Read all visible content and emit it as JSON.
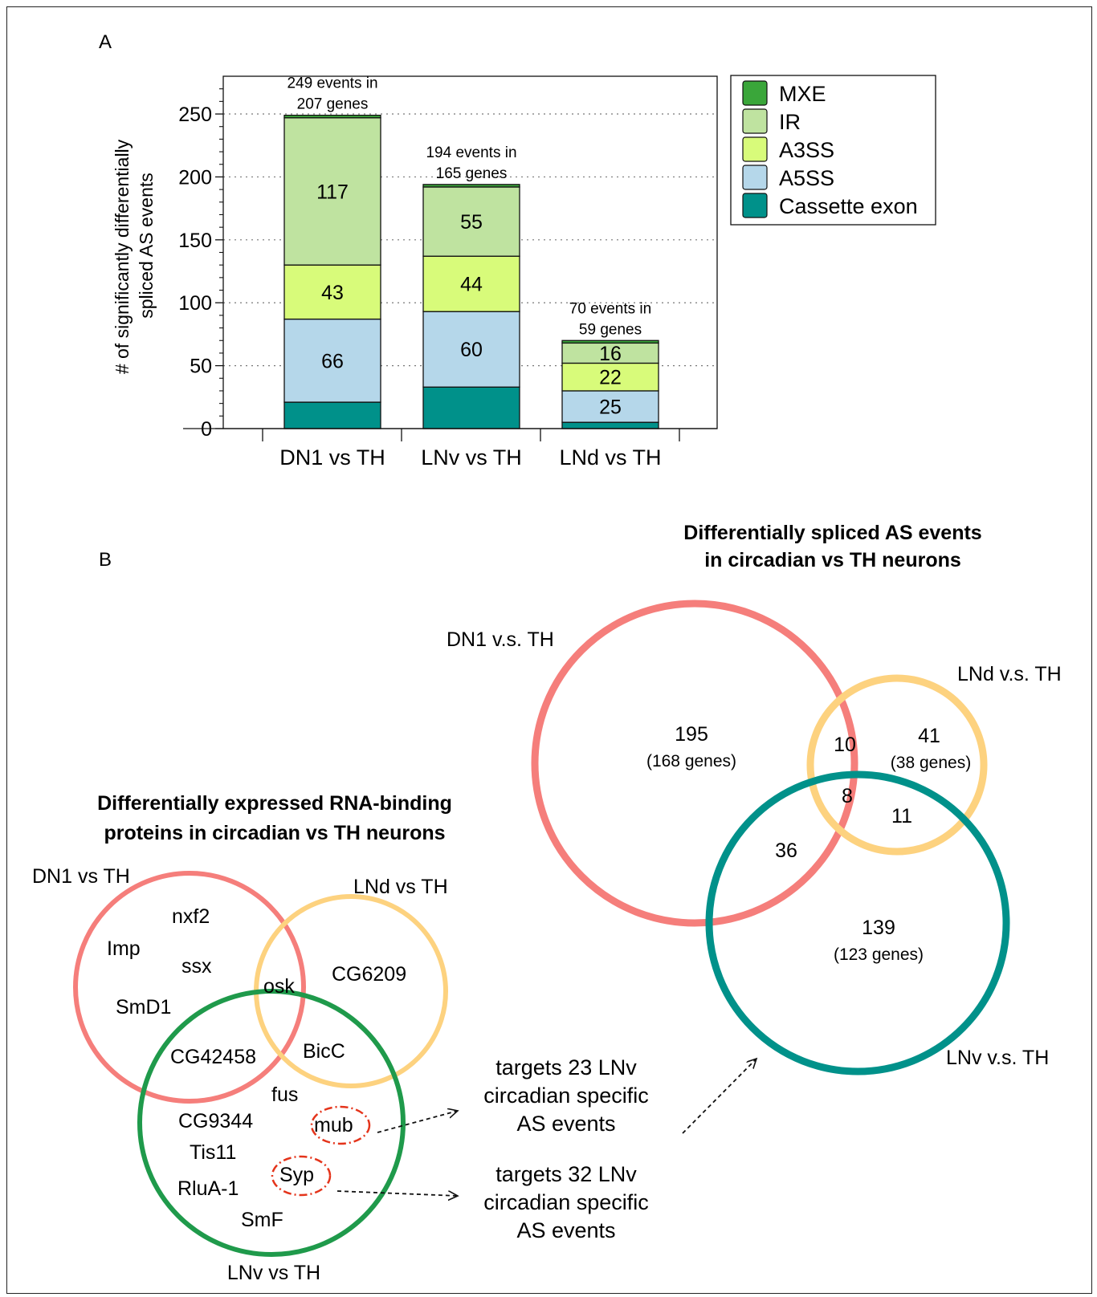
{
  "colors": {
    "MXE": "#3aa63a",
    "IR": "#bfe3a0",
    "A3SS": "#d8fb7a",
    "A5SS": "#b5d7ea",
    "Cassette exon": "#00918a",
    "dn1_circle": "#f57e7b",
    "lnd_circle": "#fdd27f",
    "lnv_as_circle": "#00918a",
    "lnv_rbp_circle": "#1f9a4b",
    "highlight": "#e4341b"
  },
  "panel_a": {
    "label": "A",
    "chart_data": {
      "type": "bar",
      "stacked": true,
      "ylabel_line1": "# of significantly differentially",
      "ylabel_line2": "spliced AS events",
      "ylim": [
        0,
        280
      ],
      "yticks": [
        0,
        50,
        100,
        150,
        200,
        250
      ],
      "grid": "horizontal dotted",
      "legend_position": "top-right",
      "categories": [
        "DN1 vs TH",
        "LNv vs TH",
        "LNd vs TH"
      ],
      "series": [
        {
          "name": "Cassette exon",
          "values": [
            21,
            33,
            5
          ],
          "labels": [
            "",
            "",
            ""
          ]
        },
        {
          "name": "A5SS",
          "values": [
            66,
            60,
            25
          ],
          "labels": [
            "66",
            "60",
            "25"
          ]
        },
        {
          "name": "A3SS",
          "values": [
            43,
            44,
            22
          ],
          "labels": [
            "43",
            "44",
            "22"
          ]
        },
        {
          "name": "IR",
          "values": [
            117,
            55,
            16
          ],
          "labels": [
            "117",
            "55",
            "16"
          ]
        },
        {
          "name": "MXE",
          "values": [
            2,
            2,
            2
          ],
          "labels": [
            "",
            "",
            ""
          ]
        }
      ],
      "legend": [
        "MXE",
        "IR",
        "A3SS",
        "A5SS",
        "Cassette exon"
      ],
      "annotations": [
        {
          "line1": "249 events in",
          "line2": "207 genes"
        },
        {
          "line1": "194 events in",
          "line2": "165 genes"
        },
        {
          "line1": "70 events in",
          "line2": "59 genes"
        }
      ]
    }
  },
  "panel_b": {
    "label": "B",
    "rbp_title_line1": "Differentially expressed RNA-binding",
    "rbp_title_line2": "proteins in circadian vs TH neurons",
    "rbp_sets": {
      "dn1": "DN1 vs TH",
      "lnd": "LNd vs TH",
      "lnv": "LNv vs TH"
    },
    "rbp_genes": {
      "nxf2": "nxf2",
      "Imp": "Imp",
      "ssx": "ssx",
      "SmD1": "SmD1",
      "osk": "osk",
      "CG6209": "CG6209",
      "CG42458": "CG42458",
      "BicC": "BicC",
      "fus": "fus",
      "CG9344": "CG9344",
      "mub": "mub",
      "Tis11": "Tis11",
      "Syp": "Syp",
      "RluA-1": "RluA-1",
      "SmF": "SmF"
    },
    "targets_mub": [
      "targets 23 LNv",
      "circadian specific",
      "AS events"
    ],
    "targets_syp": [
      "targets 32 LNv",
      "circadian specific",
      "AS events"
    ],
    "as_title_line1": "Differentially spliced AS events",
    "as_title_line2": "in circadian vs TH neurons",
    "as_sets": {
      "dn1": "DN1 v.s. TH",
      "lnd": "LNd v.s. TH",
      "lnv": "LNv v.s. TH"
    },
    "as_regions": {
      "dn1_only": "195",
      "dn1_only_genes": "(168 genes)",
      "dn1_lnd": "10",
      "lnd_only": "41",
      "lnd_only_genes": "(38 genes)",
      "all_three": "8",
      "lnd_lnv": "11",
      "dn1_lnv": "36",
      "lnv_only": "139",
      "lnv_only_genes": "(123 genes)"
    }
  }
}
